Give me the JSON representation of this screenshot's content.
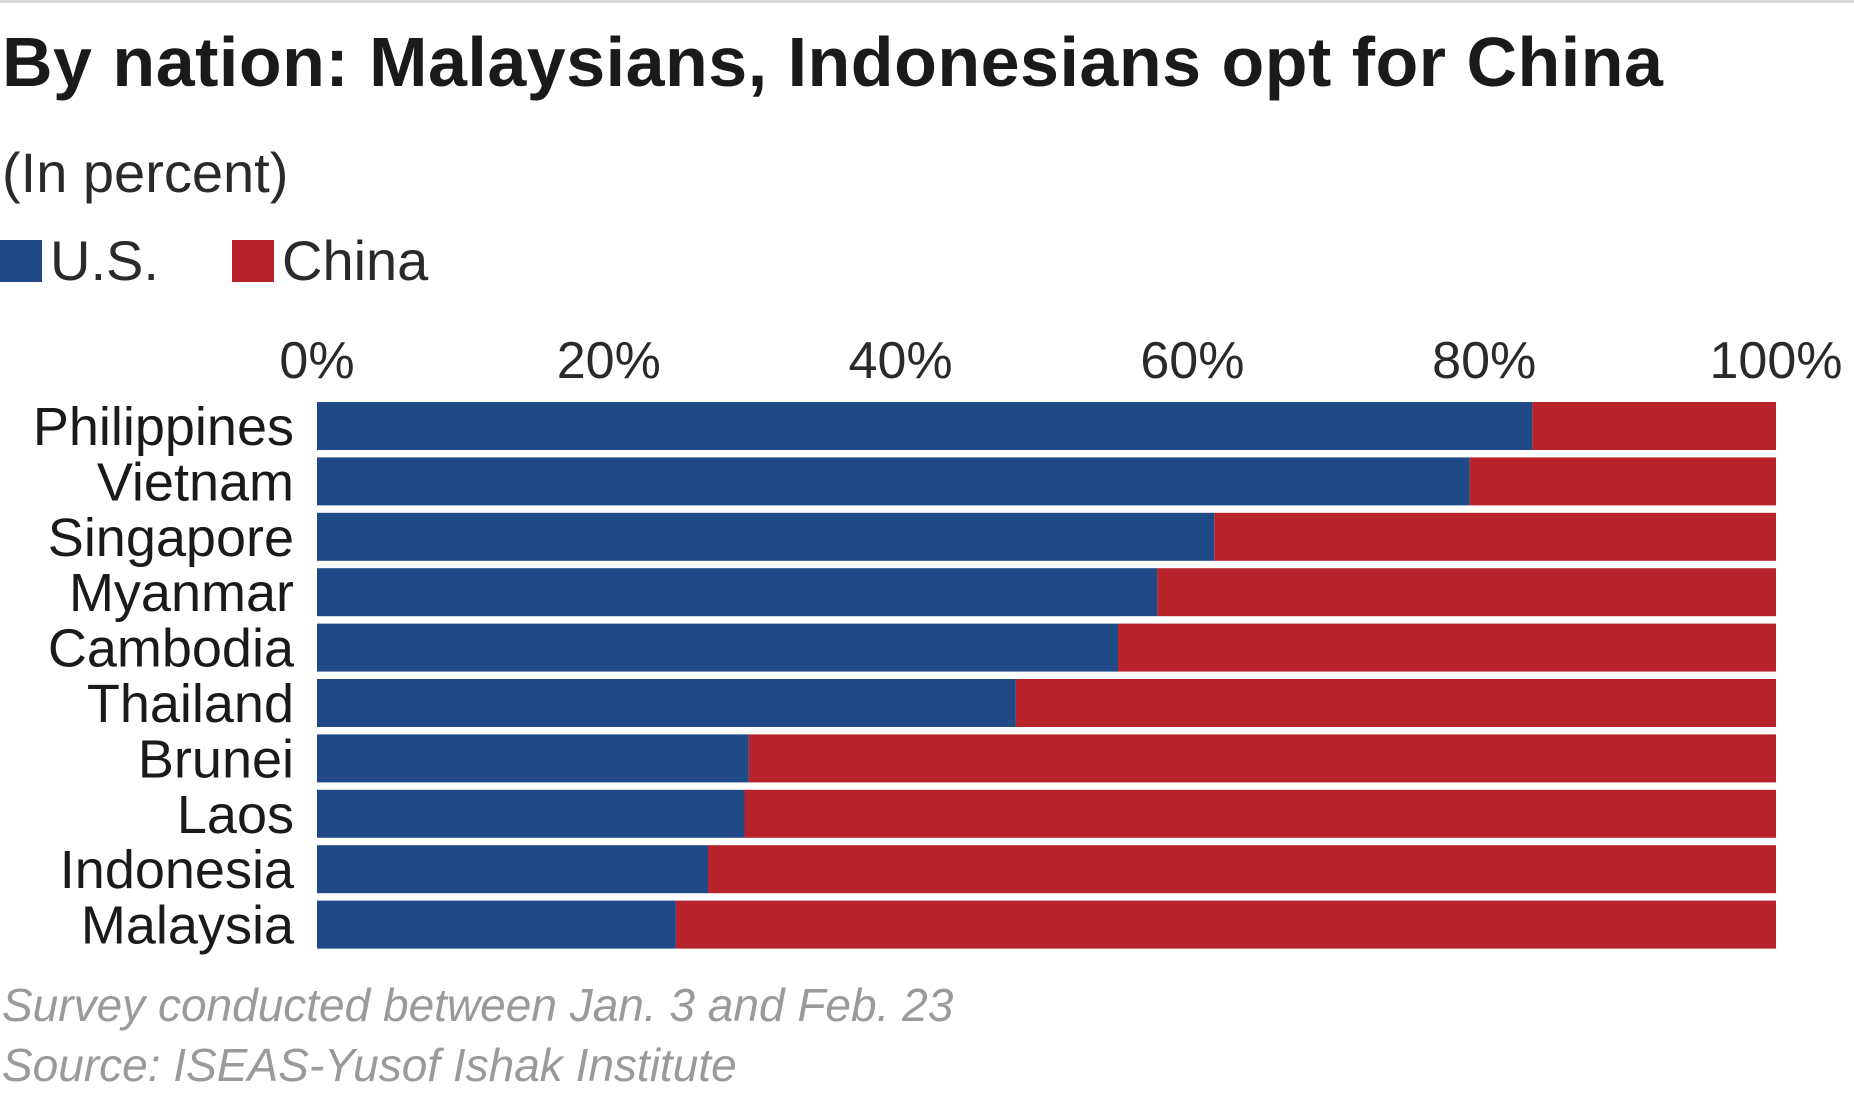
{
  "title": "By nation: Malaysians, Indonesians opt for China",
  "subtitle": "(In percent)",
  "legend": [
    {
      "label": "U.S.",
      "color": "#1f4a87"
    },
    {
      "label": "China",
      "color": "#b8232b"
    }
  ],
  "notes": {
    "survey": "Survey conducted between Jan. 3 and Feb. 23",
    "source": "Source: ISEAS-Yusof Ishak Institute"
  },
  "chart_data": {
    "type": "bar",
    "orientation": "horizontal",
    "stacked": true,
    "title": "By nation: Malaysians, Indonesians opt for China",
    "subtitle": "(In percent)",
    "categories": [
      "Philippines",
      "Vietnam",
      "Singapore",
      "Myanmar",
      "Cambodia",
      "Thailand",
      "Brunei",
      "Laos",
      "Indonesia",
      "Malaysia"
    ],
    "series": [
      {
        "name": "U.S.",
        "color": "#1f4a87",
        "values": [
          83.3,
          79.0,
          61.5,
          57.6,
          54.9,
          47.9,
          29.6,
          29.3,
          26.8,
          24.6
        ]
      },
      {
        "name": "China",
        "color": "#b8232b",
        "values": [
          16.7,
          21.0,
          38.5,
          42.4,
          45.1,
          52.1,
          70.4,
          70.7,
          73.2,
          75.4
        ]
      }
    ],
    "ticks": [
      "0%",
      "20%",
      "40%",
      "60%",
      "80%",
      "100%"
    ],
    "xlim": [
      0,
      100
    ],
    "xaxis_position": "top",
    "grid": false,
    "legend_position": "top-left"
  }
}
